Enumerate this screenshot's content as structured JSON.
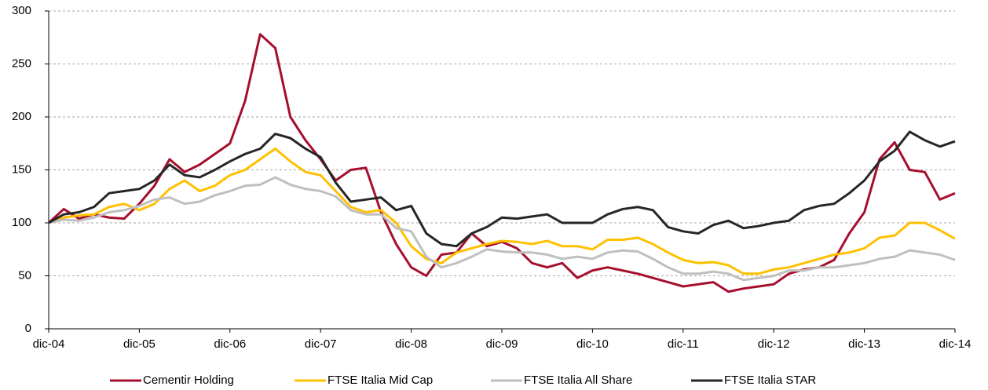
{
  "chart_data": {
    "type": "line",
    "categories": [
      "dic-04",
      null,
      null,
      null,
      null,
      null,
      "dic-05",
      null,
      null,
      null,
      null,
      null,
      "dic-06",
      null,
      null,
      null,
      null,
      null,
      "dic-07",
      null,
      null,
      null,
      null,
      null,
      "dic-08",
      null,
      null,
      null,
      null,
      null,
      "dic-09",
      null,
      null,
      null,
      null,
      null,
      "dic-10",
      null,
      null,
      null,
      null,
      null,
      "dic-11",
      null,
      null,
      null,
      null,
      null,
      "dic-12",
      null,
      null,
      null,
      null,
      null,
      "dic-13",
      null,
      null,
      null,
      null,
      null,
      "dic-14"
    ],
    "series": [
      {
        "name": "Cementir Holding",
        "color": "#a50f2d",
        "values": [
          100,
          113,
          104,
          108,
          105,
          104,
          118,
          135,
          160,
          148,
          155,
          165,
          175,
          215,
          278,
          265,
          200,
          178,
          160,
          140,
          150,
          152,
          110,
          80,
          58,
          50,
          70,
          72,
          90,
          78,
          82,
          76,
          62,
          58,
          62,
          48,
          55,
          58,
          55,
          52,
          48,
          44,
          40,
          42,
          44,
          35,
          38,
          40,
          42,
          52,
          56,
          58,
          65,
          90,
          110,
          160,
          176,
          150,
          148,
          122,
          128
        ]
      },
      {
        "name": "FTSE Italia Mid Cap",
        "color": "#ffc000",
        "values": [
          100,
          105,
          107,
          108,
          115,
          118,
          112,
          118,
          132,
          140,
          130,
          135,
          145,
          150,
          160,
          170,
          158,
          148,
          145,
          130,
          115,
          110,
          112,
          100,
          78,
          66,
          62,
          72,
          76,
          80,
          83,
          82,
          80,
          83,
          78,
          78,
          75,
          84,
          84,
          86,
          80,
          72,
          65,
          62,
          63,
          60,
          52,
          52,
          56,
          58,
          62,
          66,
          70,
          72,
          76,
          86,
          88,
          100,
          100,
          93,
          85
        ]
      },
      {
        "name": "FTSE Italia All Share",
        "color": "#bfbfbf",
        "values": [
          100,
          103,
          102,
          105,
          110,
          112,
          116,
          122,
          124,
          118,
          120,
          126,
          130,
          135,
          136,
          143,
          136,
          132,
          130,
          125,
          112,
          108,
          108,
          95,
          92,
          68,
          58,
          62,
          68,
          75,
          73,
          72,
          72,
          70,
          66,
          68,
          66,
          72,
          74,
          73,
          66,
          58,
          52,
          52,
          54,
          52,
          46,
          48,
          50,
          55,
          55,
          58,
          58,
          60,
          62,
          66,
          68,
          74,
          72,
          70,
          65
        ]
      },
      {
        "name": "FTSE Italia STAR",
        "color": "#262626",
        "values": [
          100,
          108,
          110,
          115,
          128,
          130,
          132,
          140,
          155,
          145,
          143,
          150,
          158,
          165,
          170,
          184,
          180,
          170,
          162,
          138,
          120,
          122,
          124,
          112,
          116,
          90,
          80,
          78,
          90,
          96,
          105,
          104,
          106,
          108,
          100,
          100,
          100,
          108,
          113,
          115,
          112,
          96,
          92,
          90,
          98,
          102,
          95,
          97,
          100,
          102,
          112,
          116,
          118,
          128,
          140,
          158,
          168,
          186,
          178,
          172,
          177
        ]
      }
    ],
    "ylim": [
      0,
      300
    ],
    "yticks": [
      0,
      50,
      100,
      150,
      200,
      250,
      300
    ],
    "grid": true,
    "legend": "bottom"
  }
}
